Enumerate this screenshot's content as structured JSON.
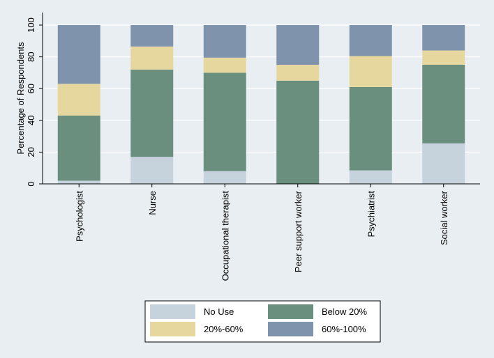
{
  "chart_data": {
    "type": "bar",
    "stacked": true,
    "ylabel": "Percentage of Respondents",
    "xlabel": "",
    "ylim": [
      0,
      100
    ],
    "yticks": [
      0,
      20,
      40,
      60,
      80,
      100
    ],
    "grid": true,
    "legend_position": "bottom",
    "categories": [
      "Psychologist",
      "Nurse",
      "Occupational therapist",
      "Peer support worker",
      "Psychiatrist",
      "Social worker"
    ],
    "series": [
      {
        "name": "No Use",
        "color": "#c6d3dd",
        "values": [
          2,
          17,
          8,
          0,
          8.5,
          25.5
        ]
      },
      {
        "name": "Below 20%",
        "color": "#6a8f7e",
        "values": [
          41,
          55,
          62,
          65,
          52.5,
          49.5
        ]
      },
      {
        "name": "20%-60%",
        "color": "#e6d79e",
        "values": [
          20,
          14.5,
          9.5,
          10,
          19.5,
          9
        ]
      },
      {
        "name": "60%-100%",
        "color": "#7f94ac",
        "values": [
          37,
          13.5,
          20.5,
          25,
          19.5,
          16
        ]
      }
    ]
  },
  "colors": {
    "background": "#e8eef2",
    "plot_background": "#e8eef2",
    "gridline": "#ffffff",
    "legend_background": "#ffffff"
  }
}
